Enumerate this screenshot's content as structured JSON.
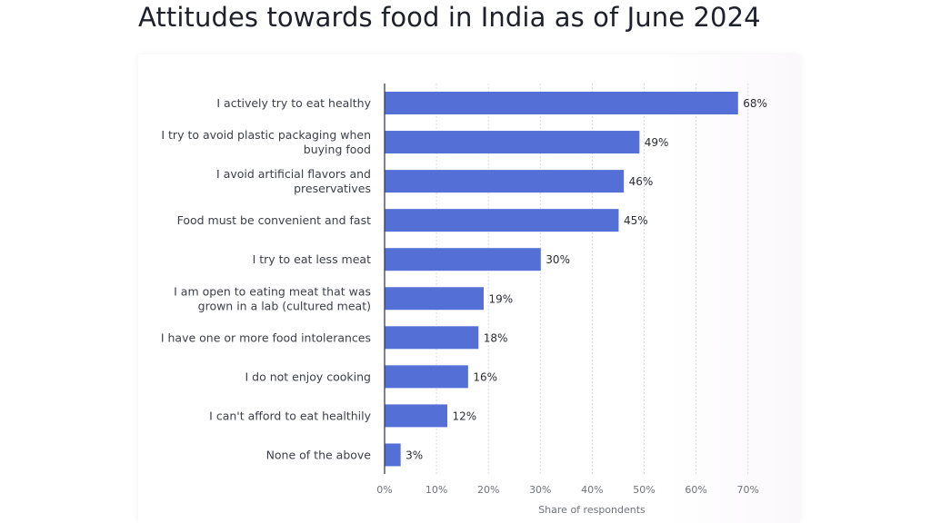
{
  "page": {
    "title": "Attitudes towards food in India as of June 2024"
  },
  "chart_data": {
    "type": "bar",
    "orientation": "horizontal",
    "title": "Attitudes towards food in India as of June 2024",
    "xlabel": "Share of respondents",
    "ylabel": "",
    "xlim": [
      0,
      70
    ],
    "x_ticks": [
      "0%",
      "10%",
      "20%",
      "30%",
      "40%",
      "50%",
      "60%",
      "70%"
    ],
    "grid": "vertical dashed",
    "bar_color": "#5470d6",
    "categories": [
      [
        "I actively try to eat healthy"
      ],
      [
        "I try to avoid plastic packaging when",
        "buying food"
      ],
      [
        "I avoid artificial flavors and",
        "preservatives"
      ],
      [
        "Food must be convenient and fast"
      ],
      [
        "I try to eat less meat"
      ],
      [
        "I am open to eating meat that was",
        "grown in a lab (cultured meat)"
      ],
      [
        "I have one or more food intolerances"
      ],
      [
        "I do not enjoy cooking"
      ],
      [
        "I can't afford to eat healthily"
      ],
      [
        "None of the above"
      ]
    ],
    "values": [
      68,
      49,
      46,
      45,
      30,
      19,
      18,
      16,
      12,
      3
    ],
    "value_labels": [
      "68%",
      "49%",
      "46%",
      "45%",
      "30%",
      "19%",
      "18%",
      "16%",
      "12%",
      "3%"
    ]
  }
}
